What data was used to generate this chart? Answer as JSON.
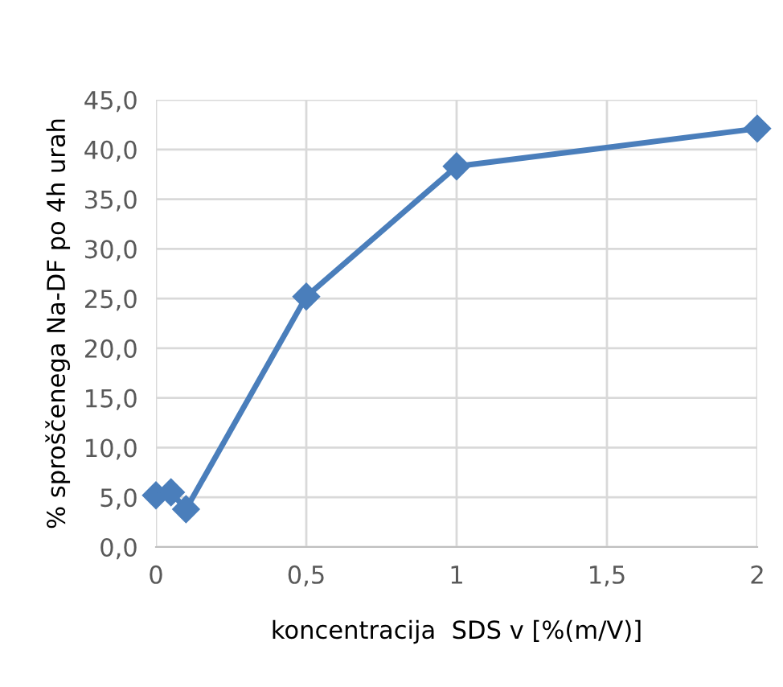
{
  "chart_data": {
    "type": "line",
    "xlabel": "koncentracija  SDS v [%(m/V)]",
    "ylabel": "% sproščenega Na-DF po 4h urah",
    "x": [
      0,
      0.05,
      0.1,
      0.5,
      1,
      2
    ],
    "series": [
      {
        "color": "#4a7ebb",
        "values": [
          5.2,
          5.5,
          3.8,
          25.2,
          38.3,
          42.1
        ]
      }
    ],
    "marker": "diamond",
    "line_style": "solid",
    "grid": true,
    "legend": false,
    "xlim": [
      0,
      2
    ],
    "xticks": [
      {
        "value": 0,
        "label": "0"
      },
      {
        "value": 0.5,
        "label": "0,5"
      },
      {
        "value": 1,
        "label": "1"
      },
      {
        "value": 1.5,
        "label": "1,5"
      },
      {
        "value": 2,
        "label": "2"
      }
    ],
    "ylim": [
      0,
      45
    ],
    "yticks": [
      {
        "value": 0,
        "label": "0,0"
      },
      {
        "value": 5,
        "label": "5,0"
      },
      {
        "value": 10,
        "label": "10,0"
      },
      {
        "value": 15,
        "label": "15,0"
      },
      {
        "value": 20,
        "label": "20,0"
      },
      {
        "value": 25,
        "label": "25,0"
      },
      {
        "value": 30,
        "label": "30,0"
      },
      {
        "value": 35,
        "label": "35,0"
      },
      {
        "value": 40,
        "label": "40,0"
      },
      {
        "value": 45,
        "label": "45,0"
      }
    ]
  }
}
